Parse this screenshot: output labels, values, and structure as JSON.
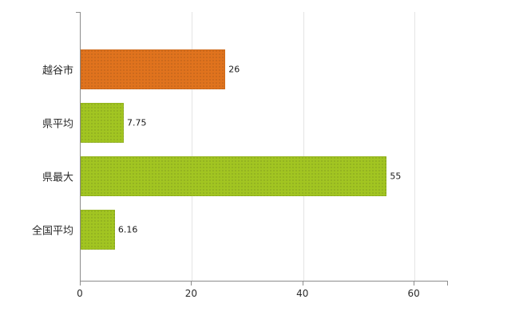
{
  "chart_data": {
    "type": "bar",
    "orientation": "horizontal",
    "categories": [
      "越谷市",
      "県平均",
      "県最大",
      "全国平均"
    ],
    "values": [
      26,
      7.75,
      55,
      6.16
    ],
    "value_labels": [
      "26",
      "7.75",
      "55",
      "6.16"
    ],
    "series": [
      {
        "name": "value",
        "values": [
          26,
          7.75,
          55,
          6.16
        ]
      }
    ],
    "bar_colors": [
      "#e0731d",
      "#a2c521",
      "#a2c521",
      "#a2c521"
    ],
    "title": "",
    "xlabel": "",
    "ylabel": "",
    "xlim": [
      0,
      66
    ],
    "x_ticks": [
      0,
      20,
      40,
      60
    ],
    "grid": true,
    "legend": "none",
    "background": "#ffffff"
  },
  "colors": {
    "orange_bar": "#e0731d",
    "green_bar": "#a2c521",
    "gridline": "#e4e4e4",
    "axis": "#8c8c8c",
    "text": "#2b2b2b"
  }
}
